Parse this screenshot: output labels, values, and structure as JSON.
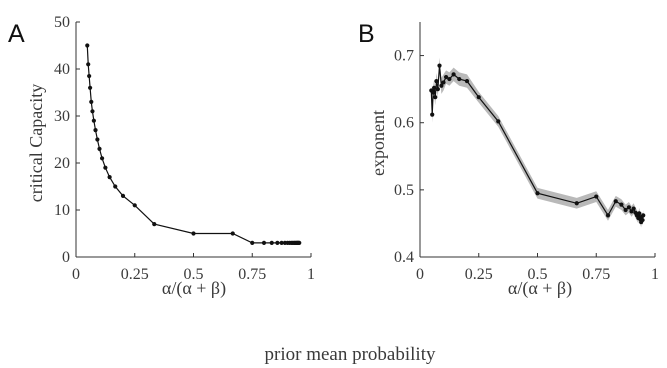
{
  "figure": {
    "shared_xlabel": "prior mean probability"
  },
  "chart_data": [
    {
      "panel": "A",
      "type": "line",
      "xlabel": "α/(α + β)",
      "ylabel": "critical Capacity",
      "xlim": [
        0,
        1
      ],
      "ylim": [
        0,
        50
      ],
      "xticks": [
        0,
        0.25,
        0.5,
        0.75,
        1
      ],
      "xtick_labels": [
        "0",
        "0.25",
        "0.5",
        "0.75",
        "1"
      ],
      "yticks": [
        0,
        10,
        20,
        30,
        40,
        50
      ],
      "ytick_labels": [
        "0",
        "10",
        "20",
        "30",
        "40",
        "50"
      ],
      "series": [
        {
          "x": [
            0.048,
            0.052,
            0.056,
            0.06,
            0.065,
            0.07,
            0.076,
            0.083,
            0.091,
            0.1,
            0.111,
            0.125,
            0.143,
            0.167,
            0.2,
            0.25,
            0.333,
            0.5,
            0.667,
            0.75,
            0.8,
            0.833,
            0.857,
            0.875,
            0.889,
            0.9,
            0.909,
            0.917,
            0.923,
            0.929,
            0.933,
            0.938,
            0.941,
            0.944,
            0.947,
            0.95
          ],
          "y": [
            45,
            41,
            38.5,
            36,
            33,
            31,
            29,
            27,
            25,
            23,
            21,
            19,
            17,
            15,
            13,
            11,
            7,
            5,
            5,
            3,
            3,
            3,
            3,
            3,
            3,
            3,
            3,
            3,
            3,
            3,
            3,
            3,
            3,
            3,
            3,
            3
          ]
        }
      ],
      "line_color": "#111111"
    },
    {
      "panel": "B",
      "type": "line",
      "xlabel": "α/(α + β)",
      "ylabel": "exponent",
      "xlim": [
        0,
        1
      ],
      "ylim": [
        0.4,
        0.75
      ],
      "xticks": [
        0,
        0.25,
        0.5,
        0.75,
        1
      ],
      "xtick_labels": [
        "0",
        "0.25",
        "0.5",
        "0.75",
        "1"
      ],
      "yticks": [
        0.4,
        0.5,
        0.6,
        0.7
      ],
      "ytick_labels": [
        "0.4",
        "0.5",
        "0.6",
        "0.7"
      ],
      "series": [
        {
          "x": [
            0.048,
            0.052,
            0.056,
            0.06,
            0.065,
            0.07,
            0.076,
            0.083,
            0.091,
            0.1,
            0.111,
            0.125,
            0.143,
            0.167,
            0.2,
            0.25,
            0.333,
            0.5,
            0.667,
            0.75,
            0.8,
            0.833,
            0.857,
            0.875,
            0.889,
            0.9,
            0.909,
            0.917,
            0.923,
            0.929,
            0.933,
            0.938,
            0.941,
            0.944,
            0.947,
            0.95
          ],
          "y": [
            0.648,
            0.612,
            0.645,
            0.652,
            0.638,
            0.662,
            0.65,
            0.685,
            0.655,
            0.66,
            0.668,
            0.665,
            0.672,
            0.665,
            0.662,
            0.638,
            0.602,
            0.495,
            0.48,
            0.49,
            0.462,
            0.483,
            0.478,
            0.47,
            0.474,
            0.468,
            0.472,
            0.466,
            0.462,
            0.458,
            0.465,
            0.456,
            0.452,
            0.46,
            0.455,
            0.462
          ],
          "err": [
            0.01,
            0.012,
            0.01,
            0.012,
            0.012,
            0.012,
            0.012,
            0.012,
            0.012,
            0.012,
            0.01,
            0.01,
            0.01,
            0.01,
            0.01,
            0.008,
            0.008,
            0.008,
            0.008,
            0.008,
            0.008,
            0.008,
            0.008,
            0.008,
            0.008,
            0.008,
            0.008,
            0.008,
            0.008,
            0.008,
            0.008,
            0.008,
            0.008,
            0.008,
            0.008,
            0.008
          ]
        }
      ],
      "line_color": "#111111",
      "band_color": "#b9b9b9"
    }
  ]
}
